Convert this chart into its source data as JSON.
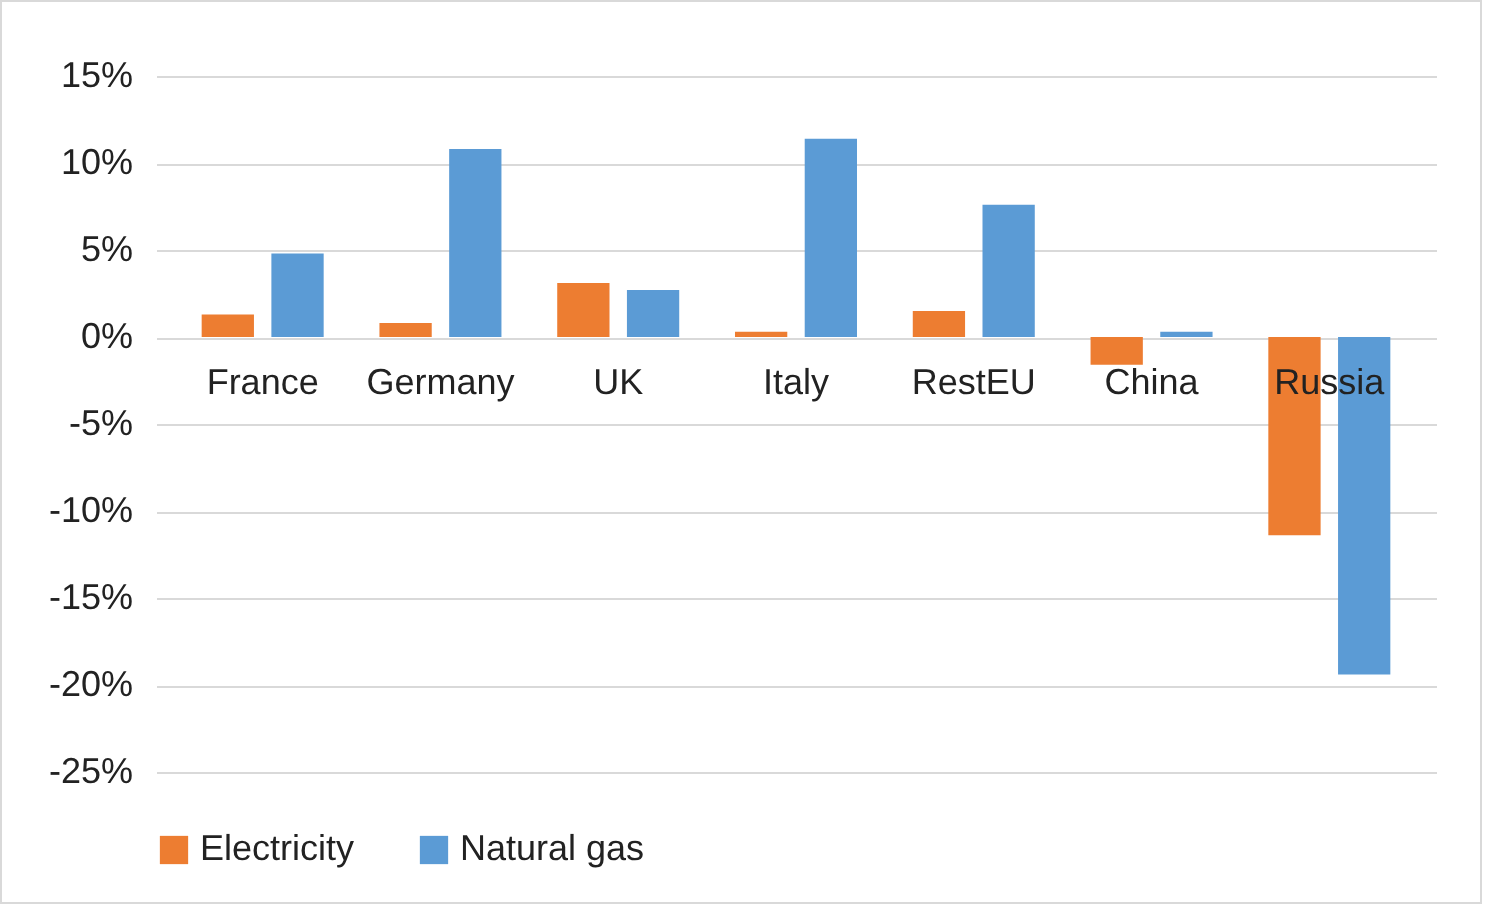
{
  "chart_data": {
    "type": "bar",
    "categories": [
      "France",
      "Germany",
      "UK",
      "Italy",
      "RestEU",
      "China",
      "Russia"
    ],
    "series": [
      {
        "name": "Electricity",
        "color": "#ed7d31",
        "values": [
          1.3,
          0.8,
          3.1,
          0.3,
          1.5,
          -1.6,
          -11.4
        ]
      },
      {
        "name": "Natural gas",
        "color": "#5b9bd5",
        "values": [
          4.8,
          10.8,
          2.7,
          11.4,
          7.6,
          0.3,
          -19.4
        ]
      }
    ],
    "ylim": [
      -25,
      15
    ],
    "yticks": [
      {
        "value": 15,
        "label": "15%"
      },
      {
        "value": 10,
        "label": "10%"
      },
      {
        "value": 5,
        "label": "5%"
      },
      {
        "value": 0,
        "label": "0%"
      },
      {
        "value": -5,
        "label": "-5%"
      },
      {
        "value": -10,
        "label": "-10%"
      },
      {
        "value": -15,
        "label": "-15%"
      },
      {
        "value": -20,
        "label": "-20%"
      },
      {
        "value": -25,
        "label": "-25%"
      }
    ],
    "grid": "y",
    "legend": "bottom"
  }
}
